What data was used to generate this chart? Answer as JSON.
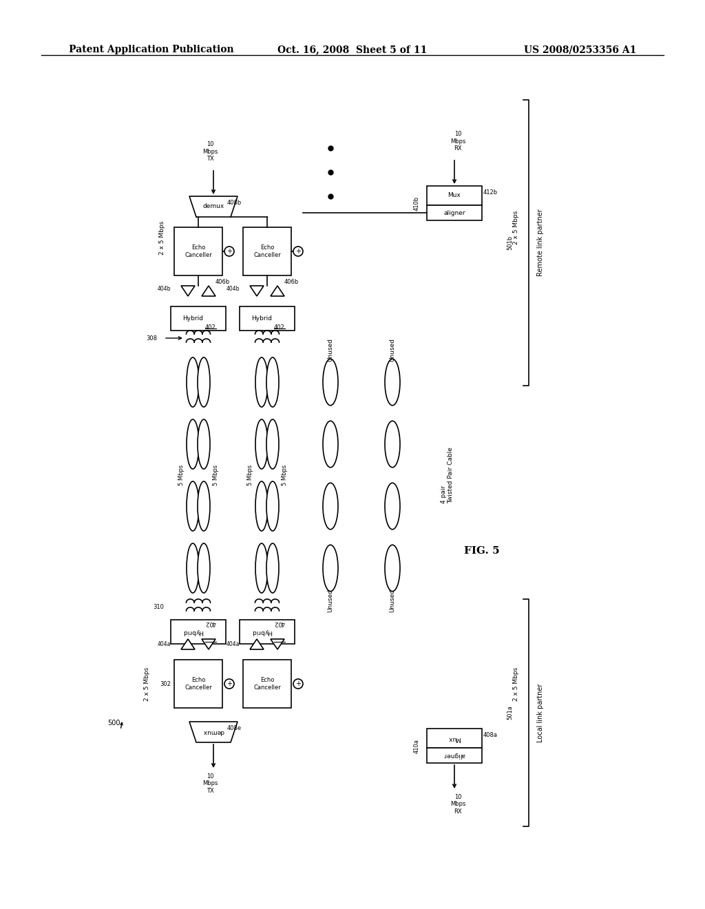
{
  "title_left": "Patent Application Publication",
  "title_center": "Oct. 16, 2008  Sheet 5 of 11",
  "title_right": "US 2008/0253356 A1",
  "fig_label": "FIG. 5",
  "figure_number": "500",
  "bg_color": "#ffffff",
  "line_color": "#000000"
}
